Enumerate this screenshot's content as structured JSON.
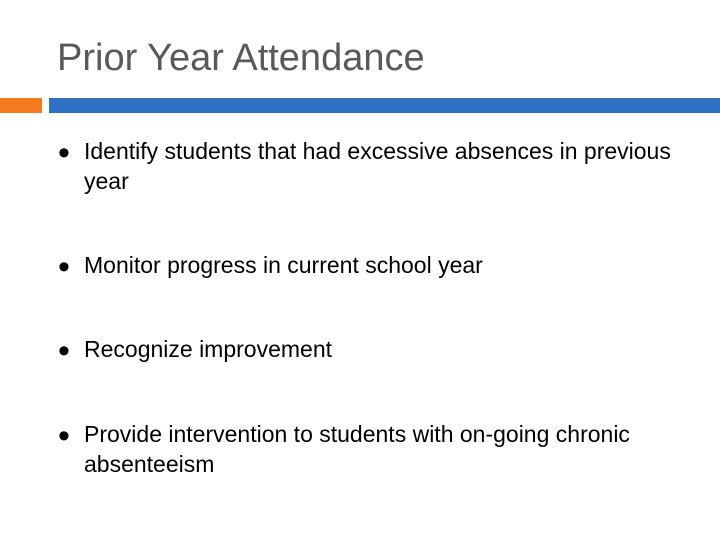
{
  "slide": {
    "title": "Prior Year Attendance",
    "bullet_symbol": "•",
    "bullets": [
      "Identify students that had excessive absences in previous year",
      "Monitor progress in current school year",
      "Recognize improvement",
      "Provide intervention to students with on-going chronic absenteeism"
    ]
  },
  "colors": {
    "title_text": "#595959",
    "accent_orange": "#f47b20",
    "accent_blue": "#2f6fc4",
    "body_text": "#000000"
  }
}
